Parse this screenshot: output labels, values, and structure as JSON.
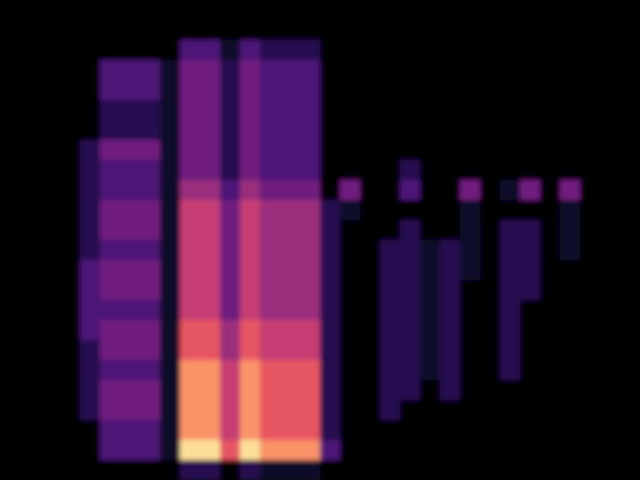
{
  "chart_data": {
    "type": "heatmap",
    "tick_labels": false,
    "xlim": [
      0,
      32
    ],
    "ylim": [
      0,
      24
    ],
    "clim": [
      0,
      9
    ],
    "cells": [
      [
        0,
        0,
        0,
        0,
        0,
        0,
        0,
        0,
        0,
        0,
        0,
        0,
        0,
        0,
        0,
        0,
        0,
        0,
        0,
        0,
        0,
        0,
        0,
        0,
        0,
        0,
        0,
        0,
        0,
        0,
        0,
        0
      ],
      [
        0,
        0,
        0,
        0,
        0,
        0,
        0,
        0,
        0,
        0,
        0,
        0,
        0,
        0,
        0,
        0,
        0,
        0,
        0,
        0,
        0,
        0,
        0,
        0,
        0,
        0,
        0,
        0,
        0,
        0,
        0,
        0
      ],
      [
        0,
        0,
        0,
        0,
        0,
        0,
        0,
        0,
        0,
        3,
        3,
        1,
        3,
        2,
        2,
        2,
        0,
        0,
        0,
        0,
        0,
        0,
        0,
        0,
        0,
        0,
        0,
        0,
        0,
        0,
        0,
        0
      ],
      [
        0,
        0,
        0,
        0,
        0,
        3,
        3,
        3,
        1,
        4,
        4,
        2,
        4,
        3,
        3,
        3,
        0,
        0,
        0,
        0,
        0,
        0,
        0,
        0,
        0,
        0,
        0,
        0,
        0,
        0,
        0,
        0
      ],
      [
        0,
        0,
        0,
        0,
        0,
        3,
        3,
        3,
        1,
        4,
        4,
        2,
        4,
        3,
        3,
        3,
        0,
        0,
        0,
        0,
        0,
        0,
        0,
        0,
        0,
        0,
        0,
        0,
        0,
        0,
        0,
        0
      ],
      [
        0,
        0,
        0,
        0,
        0,
        2,
        2,
        2,
        1,
        4,
        4,
        2,
        4,
        3,
        3,
        3,
        0,
        0,
        0,
        0,
        0,
        0,
        0,
        0,
        0,
        0,
        0,
        0,
        0,
        0,
        0,
        0
      ],
      [
        0,
        0,
        0,
        0,
        0,
        2,
        2,
        2,
        1,
        4,
        4,
        2,
        4,
        3,
        3,
        3,
        0,
        0,
        0,
        0,
        0,
        0,
        0,
        0,
        0,
        0,
        0,
        0,
        0,
        0,
        0,
        0
      ],
      [
        0,
        0,
        0,
        0,
        2,
        4,
        4,
        4,
        1,
        4,
        4,
        2,
        4,
        3,
        3,
        3,
        0,
        0,
        0,
        0,
        0,
        0,
        0,
        0,
        0,
        0,
        0,
        0,
        0,
        0,
        0,
        0
      ],
      [
        0,
        0,
        0,
        0,
        2,
        3,
        3,
        3,
        1,
        4,
        4,
        2,
        4,
        3,
        3,
        3,
        0,
        0,
        0,
        0,
        2,
        0,
        0,
        0,
        0,
        0,
        0,
        0,
        0,
        0,
        0,
        0
      ],
      [
        0,
        0,
        0,
        0,
        2,
        3,
        3,
        3,
        1,
        5,
        5,
        3,
        5,
        4,
        4,
        4,
        0,
        4,
        0,
        0,
        3,
        0,
        0,
        4,
        0,
        1,
        4,
        0,
        4,
        0,
        0,
        0
      ],
      [
        0,
        0,
        0,
        0,
        2,
        4,
        4,
        4,
        1,
        6,
        6,
        4,
        6,
        5,
        5,
        5,
        2,
        1,
        0,
        0,
        0,
        0,
        0,
        1,
        0,
        0,
        0,
        0,
        1,
        0,
        0,
        0
      ],
      [
        0,
        0,
        0,
        0,
        2,
        4,
        4,
        4,
        1,
        6,
        6,
        4,
        6,
        5,
        5,
        5,
        2,
        0,
        0,
        0,
        2,
        0,
        0,
        1,
        0,
        2,
        2,
        0,
        1,
        0,
        0,
        0
      ],
      [
        0,
        0,
        0,
        0,
        2,
        3,
        3,
        3,
        1,
        6,
        6,
        4,
        6,
        5,
        5,
        5,
        2,
        0,
        0,
        2,
        2,
        1,
        2,
        1,
        0,
        2,
        2,
        0,
        1,
        0,
        0,
        0
      ],
      [
        0,
        0,
        0,
        0,
        3,
        4,
        4,
        4,
        1,
        6,
        6,
        4,
        6,
        5,
        5,
        5,
        2,
        0,
        0,
        2,
        2,
        1,
        2,
        1,
        0,
        2,
        2,
        0,
        0,
        0,
        0,
        0
      ],
      [
        0,
        0,
        0,
        0,
        3,
        4,
        4,
        4,
        1,
        6,
        6,
        4,
        6,
        5,
        5,
        5,
        2,
        0,
        0,
        2,
        2,
        1,
        2,
        0,
        0,
        2,
        2,
        0,
        0,
        0,
        0,
        0
      ],
      [
        0,
        0,
        0,
        0,
        3,
        3,
        3,
        3,
        1,
        6,
        6,
        4,
        6,
        5,
        5,
        5,
        2,
        0,
        0,
        2,
        2,
        1,
        2,
        0,
        0,
        2,
        0,
        0,
        0,
        0,
        0,
        0
      ],
      [
        0,
        0,
        0,
        0,
        3,
        4,
        4,
        4,
        1,
        7,
        7,
        5,
        7,
        6,
        6,
        6,
        2,
        0,
        0,
        2,
        2,
        1,
        2,
        0,
        0,
        2,
        0,
        0,
        0,
        0,
        0,
        0
      ],
      [
        0,
        0,
        0,
        0,
        2,
        4,
        4,
        4,
        1,
        7,
        7,
        5,
        7,
        6,
        6,
        6,
        2,
        0,
        0,
        2,
        2,
        1,
        2,
        0,
        0,
        2,
        0,
        0,
        0,
        0,
        0,
        0
      ],
      [
        0,
        0,
        0,
        0,
        2,
        3,
        3,
        3,
        1,
        8,
        8,
        6,
        8,
        7,
        7,
        7,
        2,
        0,
        0,
        2,
        2,
        1,
        2,
        0,
        0,
        2,
        0,
        0,
        0,
        0,
        0,
        0
      ],
      [
        0,
        0,
        0,
        0,
        2,
        4,
        4,
        4,
        1,
        8,
        8,
        6,
        8,
        7,
        7,
        7,
        2,
        0,
        0,
        2,
        2,
        0,
        2,
        0,
        0,
        0,
        0,
        0,
        0,
        0,
        0,
        0
      ],
      [
        0,
        0,
        0,
        0,
        2,
        4,
        4,
        4,
        1,
        8,
        8,
        6,
        8,
        7,
        7,
        7,
        2,
        0,
        0,
        2,
        0,
        0,
        0,
        0,
        0,
        0,
        0,
        0,
        0,
        0,
        0,
        0
      ],
      [
        0,
        0,
        0,
        0,
        0,
        3,
        3,
        3,
        1,
        8,
        8,
        6,
        8,
        7,
        7,
        7,
        2,
        0,
        0,
        0,
        0,
        0,
        0,
        0,
        0,
        0,
        0,
        0,
        0,
        0,
        0,
        0
      ],
      [
        0,
        0,
        0,
        0,
        0,
        3,
        3,
        3,
        1,
        9,
        9,
        7,
        9,
        8,
        8,
        8,
        3,
        0,
        0,
        0,
        0,
        0,
        0,
        0,
        0,
        0,
        0,
        0,
        0,
        0,
        0,
        0
      ],
      [
        0,
        0,
        0,
        0,
        0,
        0,
        0,
        0,
        0,
        2,
        2,
        0,
        2,
        1,
        1,
        1,
        0,
        0,
        0,
        0,
        0,
        0,
        0,
        0,
        0,
        0,
        0,
        0,
        0,
        0,
        0,
        0
      ]
    ]
  }
}
